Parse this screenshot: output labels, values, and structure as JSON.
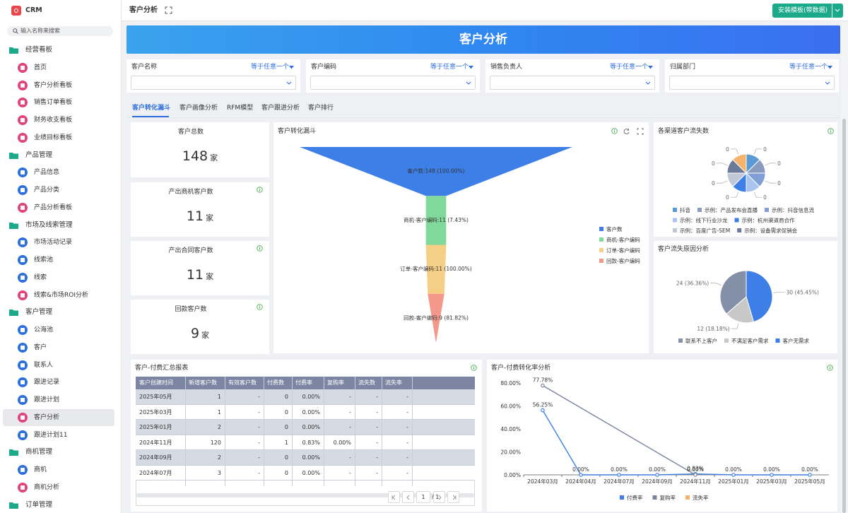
{
  "app": {
    "name": "CRM",
    "search_placeholder": "输入名称来搜索"
  },
  "sidebar": {
    "active": [
      3,
      5
    ],
    "groups": [
      {
        "label": "经营看板",
        "items": [
          {
            "label": "首页",
            "color": "#e0457b"
          },
          {
            "label": "客户分析看板",
            "color": "#e0457b"
          },
          {
            "label": "销售订单看板",
            "color": "#e0457b"
          },
          {
            "label": "财务收支看板",
            "color": "#e0457b"
          },
          {
            "label": "业绩目标看板",
            "color": "#e0457b"
          }
        ]
      },
      {
        "label": "产品管理",
        "items": [
          {
            "label": "产品信息",
            "color": "#2f6fde"
          },
          {
            "label": "产品分类",
            "color": "#2f6fde"
          },
          {
            "label": "产品分析看板",
            "color": "#e0457b"
          }
        ]
      },
      {
        "label": "市场及线索管理",
        "items": [
          {
            "label": "市场活动记录",
            "color": "#2f6fde"
          },
          {
            "label": "线索池",
            "color": "#2f6fde"
          },
          {
            "label": "线索",
            "color": "#2f6fde"
          },
          {
            "label": "线索&市场ROI分析",
            "color": "#e0457b"
          }
        ]
      },
      {
        "label": "客户管理",
        "items": [
          {
            "label": "公海池",
            "color": "#2f6fde"
          },
          {
            "label": "客户",
            "color": "#2f6fde"
          },
          {
            "label": "联系人",
            "color": "#2f6fde"
          },
          {
            "label": "跟进记录",
            "color": "#2f6fde"
          },
          {
            "label": "跟进计划",
            "color": "#2f6fde"
          },
          {
            "label": "客户分析",
            "color": "#e0457b"
          },
          {
            "label": "跟进计划11",
            "color": "#2f6fde"
          }
        ]
      },
      {
        "label": "商机管理",
        "items": [
          {
            "label": "商机",
            "color": "#2f6fde"
          },
          {
            "label": "商机分析",
            "color": "#e0457b"
          }
        ]
      },
      {
        "label": "订单管理",
        "items": []
      }
    ]
  },
  "header": {
    "title": "客户分析",
    "button": "安装模板(带数据)"
  },
  "banner": {
    "title": "客户分析"
  },
  "filters": [
    {
      "label": "客户名称",
      "operator": "等于任意一个"
    },
    {
      "label": "客户编码",
      "operator": "等于任意一个"
    },
    {
      "label": "销售负责人",
      "operator": "等于任意一个"
    },
    {
      "label": "归属部门",
      "operator": "等于任意一个"
    }
  ],
  "tabs": {
    "items": [
      "客户转化漏斗",
      "客户画像分析",
      "RFM模型",
      "客户跟进分析",
      "客户排行"
    ],
    "active": 0
  },
  "kpis": [
    {
      "title": "客户总数",
      "value": 148,
      "unit": "家"
    },
    {
      "title": "产出商机客户数",
      "value": 11,
      "unit": "家"
    },
    {
      "title": "产出合同客户数",
      "value": 11,
      "unit": "家"
    },
    {
      "title": "回款客户数",
      "value": 9,
      "unit": "家"
    }
  ],
  "funnel": {
    "type": "funnel",
    "title": "客户转化漏斗",
    "categories": [
      "客户数",
      "商机-客户编码",
      "订单-客户编码",
      "回款-客户编码"
    ],
    "values": [
      148,
      11,
      11,
      9
    ],
    "value_labels": [
      "客户数:148 (100.00%)",
      "商机-客户编码:11 (7.43%)",
      "订单-客户编码:11 (100.00%)",
      "回款-客户编码:9 (81.82%)"
    ],
    "colors": [
      "#3d7fe6",
      "#80d99a",
      "#f5cf85",
      "#f3988a"
    ]
  },
  "channel_pie": {
    "type": "pie",
    "title": "各渠道客户流失数",
    "categories": [
      "抖音",
      "示例：产品发布会直播",
      "示例：抖音信息流",
      "示例：线下行业沙龙",
      "示例：杭州渠道商合作",
      "示例：百度广告-SEM",
      "示例：设备需求促销会",
      null
    ],
    "values": [
      0,
      0,
      0,
      0,
      0,
      0,
      0,
      0
    ],
    "colors": [
      "#5b9bd5",
      "#8a9bbd",
      "#7f9fd6",
      "#a9c4ef",
      "#3d7fe6",
      "#c0c8d8",
      "#6b7a99",
      "#f6b36b"
    ]
  },
  "reason_pie": {
    "type": "pie",
    "title": "客户流失原因分析",
    "categories": [
      "客户无需求",
      "不满足客户需求",
      "联系不上客户"
    ],
    "values": [
      30,
      12,
      24
    ],
    "value_labels": [
      "30 (45.45%)",
      "12 (18.18%)",
      "24 (36.36%)"
    ],
    "colors": [
      "#3d7fe6",
      "#c8c8c8",
      "#8390a8"
    ],
    "legend_order": [
      2,
      1,
      0
    ]
  },
  "table": {
    "title": "客户-付费汇总报表",
    "columns": [
      "客户创建时间",
      "新增客户数",
      "有效客户数",
      "付费数",
      "付费率",
      "复购率",
      "流失数",
      "流失率"
    ],
    "rows": [
      [
        "2025年05月",
        1,
        "-",
        0,
        "0.00%",
        "-",
        "-",
        "-"
      ],
      [
        "2025年03月",
        1,
        "-",
        0,
        "0.00%",
        "-",
        "-",
        "-"
      ],
      [
        "2025年01月",
        2,
        "-",
        0,
        "0.00%",
        "-",
        "-",
        "-"
      ],
      [
        "2024年11月",
        120,
        "-",
        1,
        "0.83%",
        "0.00%",
        "-",
        "-"
      ],
      [
        "2024年09月",
        2,
        "-",
        0,
        "0.00%",
        "-",
        "-",
        "-"
      ],
      [
        "2024年07月",
        3,
        "-",
        0,
        "0.00%",
        "-",
        "-",
        "-"
      ]
    ],
    "pagination": {
      "page": 1,
      "total": "/ 1"
    }
  },
  "line": {
    "type": "line",
    "title": "客户-付费转化率分析",
    "x": [
      "2024年03月",
      "2024年04月",
      "2024年07月",
      "2024年09月",
      "2024年11月",
      "2025年01月",
      "2025年03月",
      "2025年05月"
    ],
    "series": [
      {
        "name": "付费率",
        "color": "#3d7fe6",
        "values": [
          56.25,
          0,
          0,
          0,
          0.83,
          0,
          0,
          0
        ],
        "value_labels": [
          "56.25%",
          "0.00%",
          "0.00%",
          "0.00%",
          "0.83%",
          "0.00%",
          "0.00%",
          "0.00%"
        ]
      },
      {
        "name": "复购率",
        "color": "#7a849e",
        "values": [
          77.78,
          null,
          null,
          null,
          0,
          null,
          null,
          null
        ],
        "value_labels": [
          "77.78%",
          null,
          null,
          null,
          "0.00%",
          null,
          null,
          null
        ]
      },
      {
        "name": "流失率",
        "color": "#f6b36b",
        "values": [
          null,
          null,
          null,
          null,
          null,
          null,
          null,
          null
        ]
      }
    ],
    "connect_nulls": true,
    "ylim": [
      0,
      80
    ],
    "yticks": [
      {
        "value": 0,
        "label": "0.00%"
      },
      {
        "value": 20,
        "label": "20.00%"
      },
      {
        "value": 40,
        "label": "40.00%"
      },
      {
        "value": 60,
        "label": "60.00%"
      },
      {
        "value": 80,
        "label": "80.00%"
      }
    ],
    "grid": false
  }
}
